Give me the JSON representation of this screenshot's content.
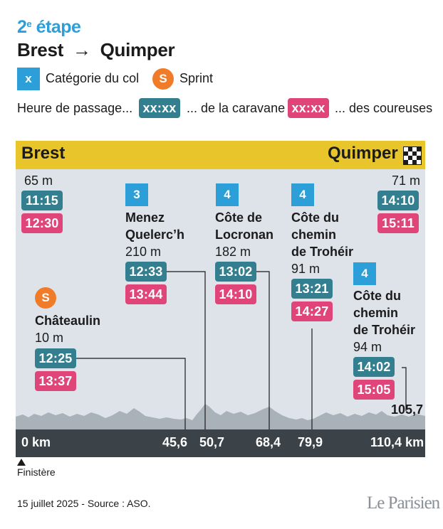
{
  "header": {
    "stage_number": "2",
    "stage_suffix": "e",
    "stage_word": "étape",
    "start": "Brest",
    "arrow": "→",
    "finish": "Quimper"
  },
  "legend": {
    "category_symbol": "x",
    "category_label": "Catégorie du col",
    "sprint_symbol": "S",
    "sprint_label": "Sprint",
    "passage_label": "Heure de passage...",
    "time_placeholder": "xx:xx",
    "caravane_label": "... de la caravane",
    "coureuses_label": "... des coureuses",
    "colors": {
      "caravane": "#347f8f",
      "coureuses": "#e0457a",
      "category": "#2c9fd9",
      "sprint": "#f07c2a",
      "topbar": "#e8c52b"
    }
  },
  "bar": {
    "start": "Brest",
    "finish": "Quimper",
    "finish_icon": "checkered-flag-icon"
  },
  "start_point": {
    "altitude": "65 m",
    "caravane": "11:15",
    "coureuses": "12:30"
  },
  "finish_point": {
    "altitude": "71 m",
    "caravane": "14:10",
    "coureuses": "15:11"
  },
  "points": [
    {
      "id": "chateaulin",
      "badge": "S",
      "name_lines": [
        "Châteaulin"
      ],
      "altitude": "10 m",
      "caravane": "12:25",
      "coureuses": "13:37",
      "km": "45,6"
    },
    {
      "id": "menez",
      "badge": "3",
      "name_lines": [
        "Menez",
        "Quelerc’h"
      ],
      "altitude": "210 m",
      "caravane": "12:33",
      "coureuses": "13:44",
      "km": "50,7"
    },
    {
      "id": "locronan",
      "badge": "4",
      "name_lines": [
        "Côte de",
        "Locronan"
      ],
      "altitude": "182 m",
      "caravane": "13:02",
      "coureuses": "14:10",
      "km": "68,4"
    },
    {
      "id": "troheir1",
      "badge": "4",
      "name_lines": [
        "Côte du",
        "chemin",
        "de Trohéir"
      ],
      "altitude": "91 m",
      "caravane": "13:21",
      "coureuses": "14:27",
      "km": "79,9"
    },
    {
      "id": "troheir2",
      "badge": "4",
      "name_lines": [
        "Côte du",
        "chemin",
        "de Trohéir"
      ],
      "altitude": "94 m",
      "caravane": "14:02",
      "coureuses": "15:05",
      "km": "105,7"
    }
  ],
  "km_axis": {
    "start": "0 km",
    "finish": "110,4 km"
  },
  "footer": {
    "region": "Finistère",
    "source": "15 juillet 2025 - Source : ASO.",
    "logo": "Le Parisien"
  }
}
